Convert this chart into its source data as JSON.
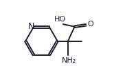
{
  "bg_color": "#ffffff",
  "line_color": "#1c1c2e",
  "line_width": 1.4,
  "font_size": 7.5,
  "N_label": "N",
  "HO_label": "HO",
  "O_label": "O",
  "NH2_label": "NH₂"
}
